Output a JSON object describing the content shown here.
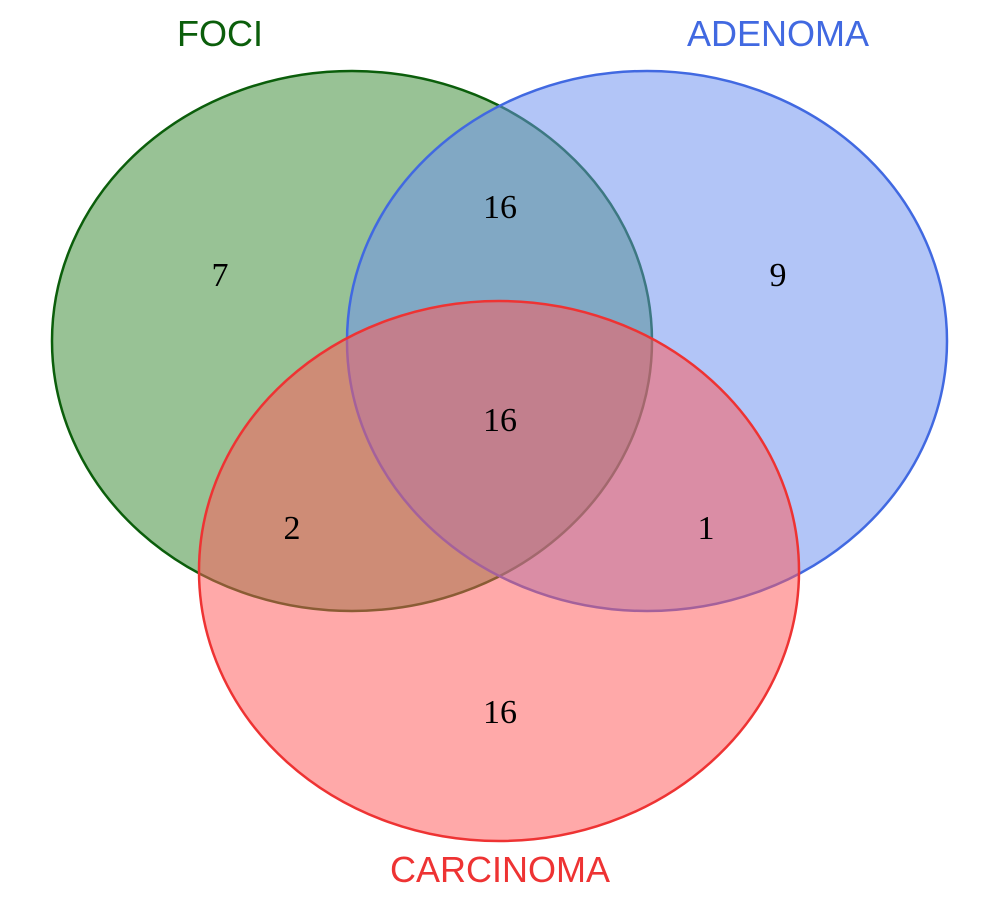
{
  "sets": [
    {
      "id": "foci",
      "label": "FOCI",
      "fill": "#3a8a33",
      "stroke": "#0b5e0b",
      "text_color": "#0b5e0b"
    },
    {
      "id": "adenoma",
      "label": "ADENOMA",
      "fill": "#6c8ff0",
      "stroke": "#4169e1",
      "text_color": "#4169e1"
    },
    {
      "id": "carcinoma",
      "label": "CARCINOMA",
      "fill": "#ff5a5a",
      "stroke": "#ee3333",
      "text_color": "#ee3333"
    }
  ],
  "regions": {
    "foci_only": "7",
    "adenoma_only": "9",
    "carcinoma_only": "16",
    "foci_adenoma": "16",
    "foci_carcinoma": "2",
    "adenoma_carcinoma": "1",
    "all_three": "16"
  }
}
